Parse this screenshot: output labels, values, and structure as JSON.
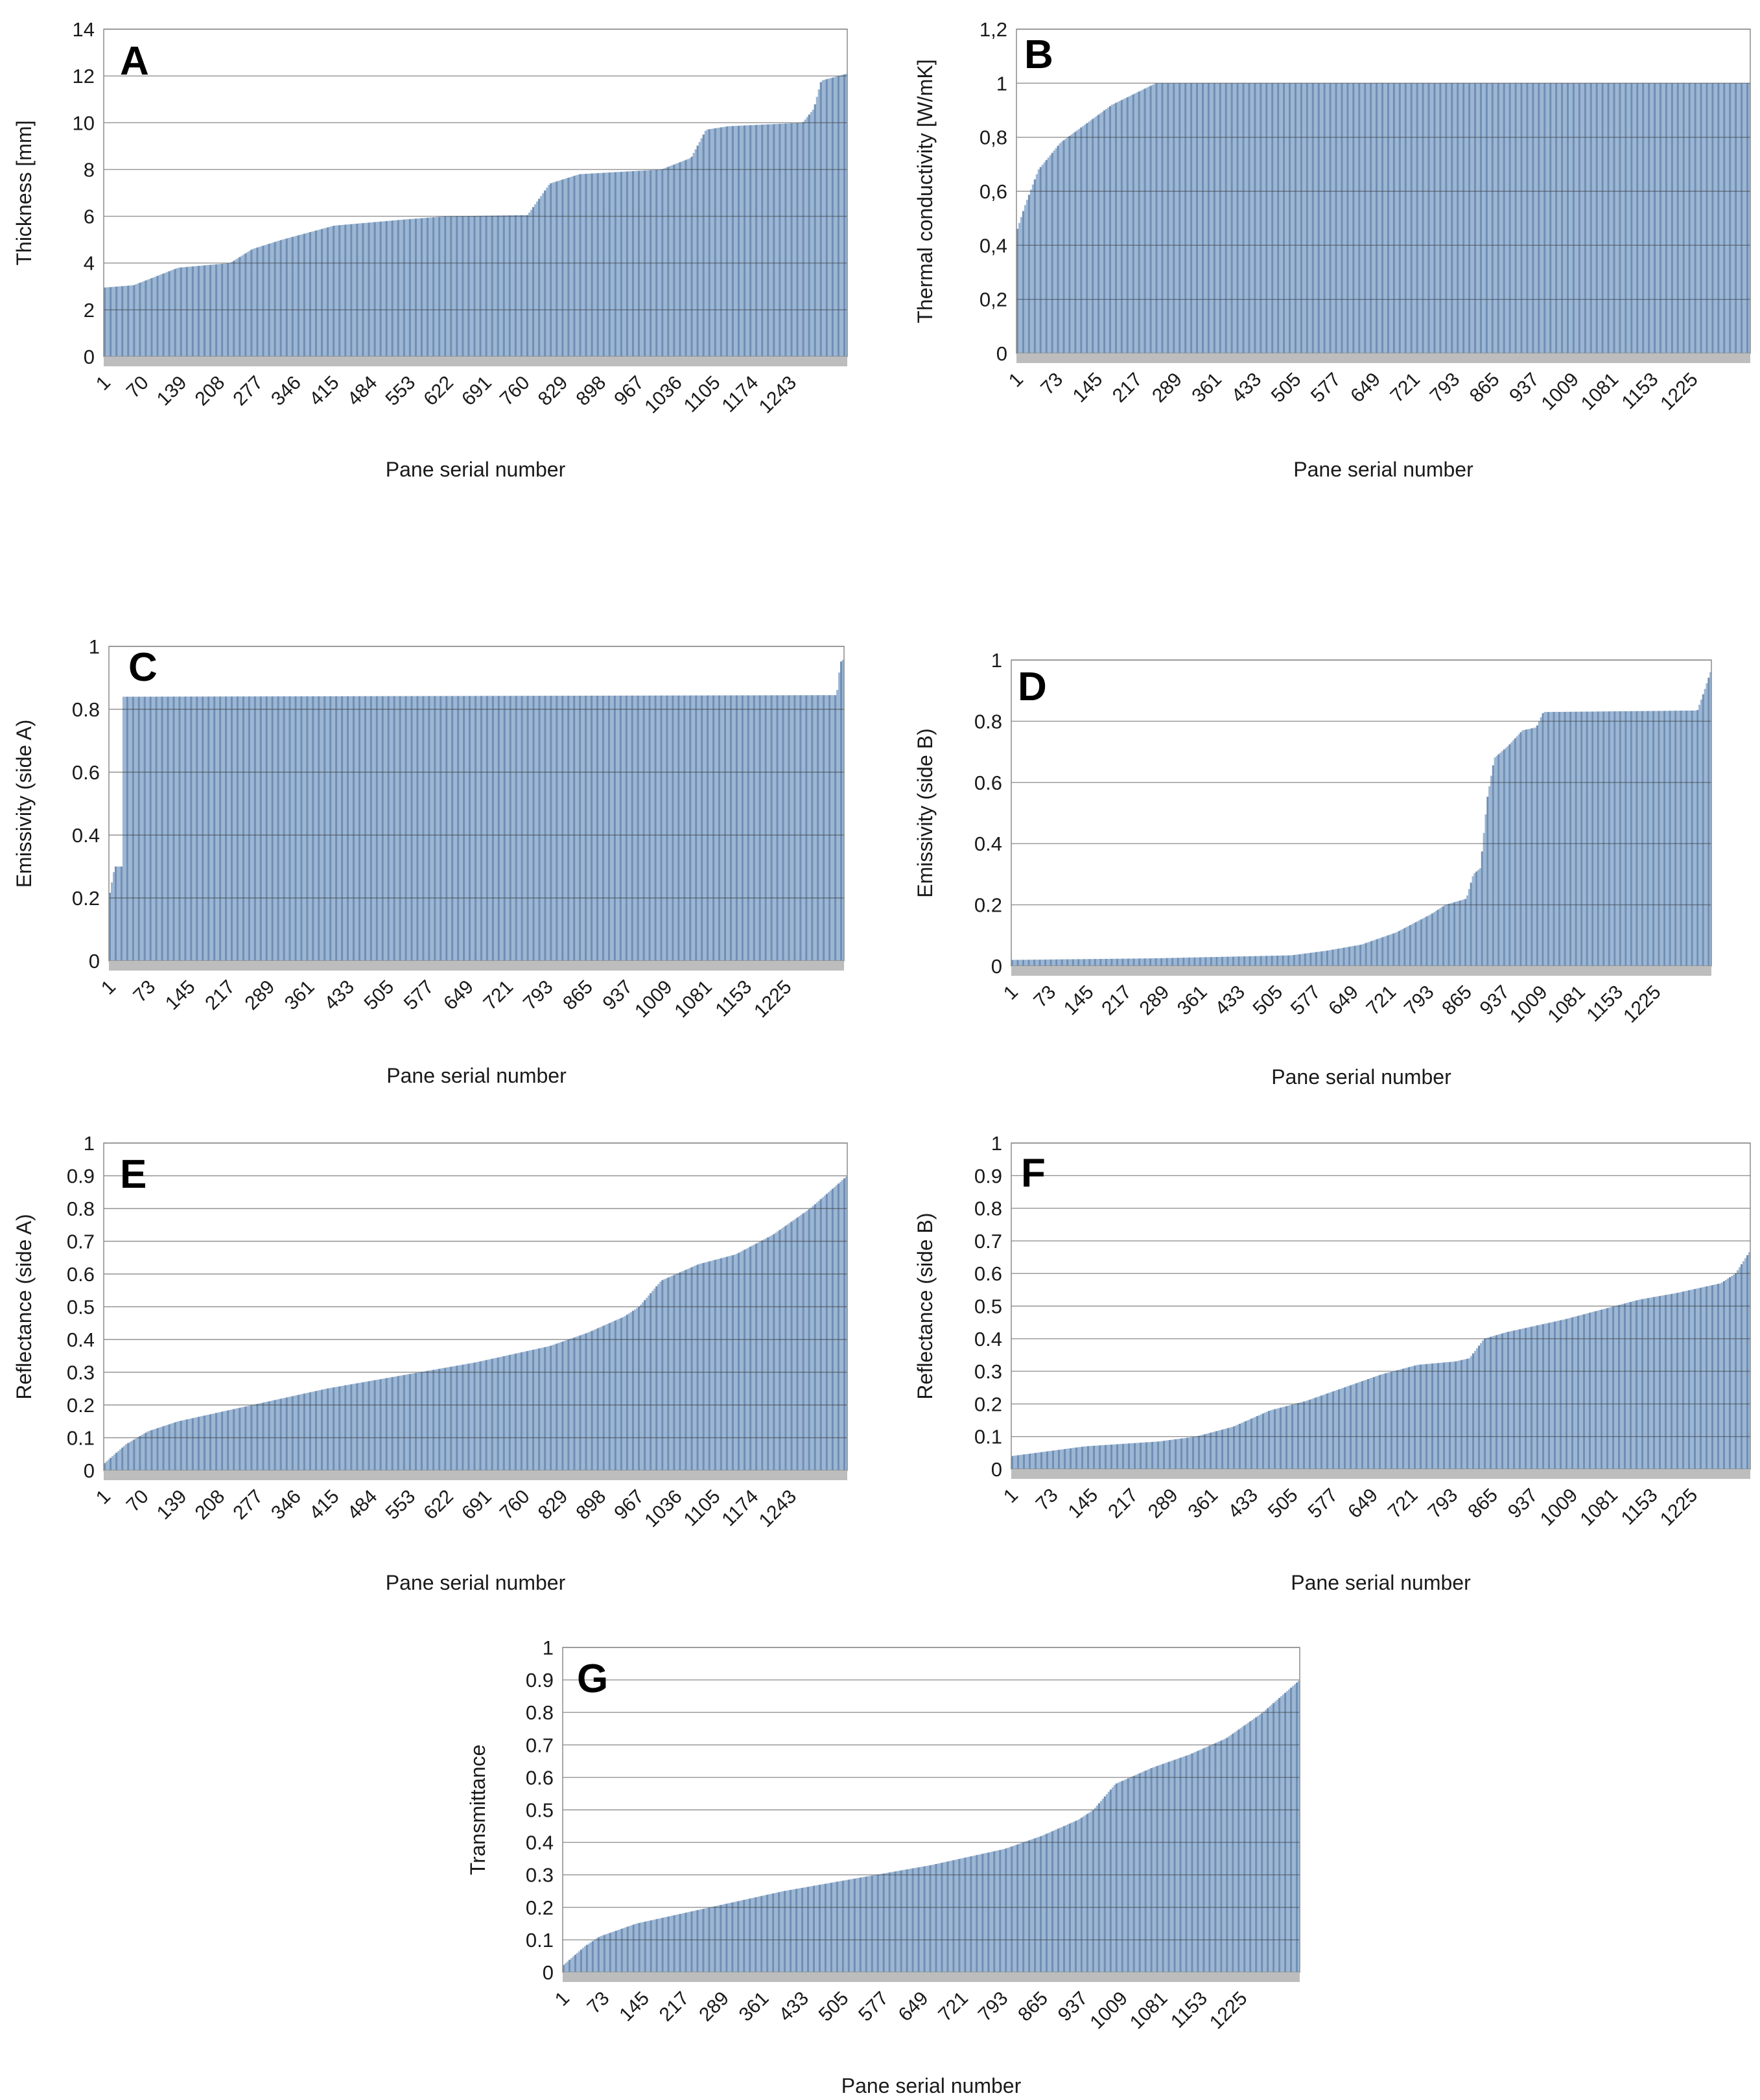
{
  "figure": {
    "bar_color": "#9cb6d3",
    "bar_edge_color": "#6f8fb5",
    "baseline_color": "#bdbdbd",
    "grid_color": "#3a3a3a"
  },
  "chart_data": [
    {
      "panel": "A",
      "type": "bar",
      "ylabel": "Thickness [mm]",
      "xlabel": "Pane serial number",
      "ylim": [
        0,
        14
      ],
      "yticks": [
        "0",
        "2",
        "4",
        "6",
        "8",
        "10",
        "12",
        "14"
      ],
      "yticks_values": [
        0,
        2,
        4,
        6,
        8,
        10,
        12,
        14
      ],
      "xticks": [
        "1",
        "70",
        "139",
        "208",
        "277",
        "346",
        "415",
        "484",
        "553",
        "622",
        "691",
        "760",
        "829",
        "898",
        "967",
        "1036",
        "1105",
        "1174",
        "1243"
      ],
      "n": 1280,
      "profile": [
        [
          0,
          2.95
        ],
        [
          0.04,
          3.05
        ],
        [
          0.06,
          3.3
        ],
        [
          0.1,
          3.8
        ],
        [
          0.17,
          4.0
        ],
        [
          0.2,
          4.6
        ],
        [
          0.24,
          5.0
        ],
        [
          0.31,
          5.6
        ],
        [
          0.4,
          5.85
        ],
        [
          0.46,
          6.0
        ],
        [
          0.57,
          6.05
        ],
        [
          0.6,
          7.4
        ],
        [
          0.64,
          7.8
        ],
        [
          0.75,
          8.0
        ],
        [
          0.79,
          8.5
        ],
        [
          0.81,
          9.7
        ],
        [
          0.84,
          9.85
        ],
        [
          0.94,
          10.0
        ],
        [
          0.955,
          10.6
        ],
        [
          0.965,
          11.8
        ],
        [
          1.0,
          12.1
        ]
      ]
    },
    {
      "panel": "B",
      "type": "bar",
      "ylabel": "Thermal conductivity  [W/mK]",
      "xlabel": "Pane serial number",
      "ylim": [
        0,
        1.2
      ],
      "yticks": [
        "0",
        "0,2",
        "0,4",
        "0,6",
        "0,8",
        "1",
        "1,2"
      ],
      "yticks_values": [
        0,
        0.2,
        0.4,
        0.6,
        0.8,
        1.0,
        1.2
      ],
      "xticks": [
        "1",
        "73",
        "145",
        "217",
        "289",
        "361",
        "433",
        "505",
        "577",
        "649",
        "721",
        "793",
        "865",
        "937",
        "1009",
        "1081",
        "1153",
        "1225"
      ],
      "n": 1280,
      "profile": [
        [
          0,
          0.45
        ],
        [
          0.012,
          0.55
        ],
        [
          0.03,
          0.68
        ],
        [
          0.06,
          0.78
        ],
        [
          0.1,
          0.86
        ],
        [
          0.13,
          0.92
        ],
        [
          0.16,
          0.96
        ],
        [
          0.19,
          1.0
        ],
        [
          1.0,
          1.0
        ]
      ]
    },
    {
      "panel": "C",
      "type": "bar",
      "ylabel": "Emissivity (side A)",
      "xlabel": "Pane serial number",
      "ylim": [
        0,
        1
      ],
      "yticks": [
        "0",
        "0.2",
        "0.4",
        "0.6",
        "0.8",
        "1"
      ],
      "yticks_values": [
        0,
        0.2,
        0.4,
        0.6,
        0.8,
        1.0
      ],
      "xticks": [
        "1",
        "73",
        "145",
        "217",
        "289",
        "361",
        "433",
        "505",
        "577",
        "649",
        "721",
        "793",
        "865",
        "937",
        "1009",
        "1081",
        "1153",
        "1225"
      ],
      "n": 1280,
      "profile": [
        [
          0,
          0.2
        ],
        [
          0.008,
          0.3
        ],
        [
          0.018,
          0.3
        ],
        [
          0.0185,
          0.84
        ],
        [
          0.99,
          0.845
        ],
        [
          0.995,
          0.95
        ],
        [
          1.0,
          0.96
        ]
      ]
    },
    {
      "panel": "D",
      "type": "bar",
      "ylabel": "Emissivity (side B)",
      "xlabel": "Pane serial number",
      "ylim": [
        0,
        1
      ],
      "yticks": [
        "0",
        "0.2",
        "0.4",
        "0.6",
        "0.8",
        "1"
      ],
      "yticks_values": [
        0,
        0.2,
        0.4,
        0.6,
        0.8,
        1.0
      ],
      "xticks": [
        "1",
        "73",
        "145",
        "217",
        "289",
        "361",
        "433",
        "505",
        "577",
        "649",
        "721",
        "793",
        "865",
        "937",
        "1009",
        "1081",
        "1153",
        "1225"
      ],
      "n": 1280,
      "profile": [
        [
          0,
          0.02
        ],
        [
          0.2,
          0.025
        ],
        [
          0.4,
          0.035
        ],
        [
          0.45,
          0.05
        ],
        [
          0.5,
          0.07
        ],
        [
          0.55,
          0.11
        ],
        [
          0.6,
          0.17
        ],
        [
          0.62,
          0.2
        ],
        [
          0.65,
          0.22
        ],
        [
          0.66,
          0.3
        ],
        [
          0.67,
          0.32
        ],
        [
          0.68,
          0.55
        ],
        [
          0.69,
          0.68
        ],
        [
          0.71,
          0.72
        ],
        [
          0.73,
          0.77
        ],
        [
          0.75,
          0.78
        ],
        [
          0.76,
          0.83
        ],
        [
          0.98,
          0.835
        ],
        [
          0.99,
          0.9
        ],
        [
          1.0,
          0.97
        ]
      ]
    },
    {
      "panel": "E",
      "type": "bar",
      "ylabel": "Reflectance (side A)",
      "xlabel": "Pane serial number",
      "ylim": [
        0,
        1
      ],
      "yticks": [
        "0",
        "0.1",
        "0.2",
        "0.3",
        "0.4",
        "0.5",
        "0.6",
        "0.7",
        "0.8",
        "0.9",
        "1"
      ],
      "yticks_values": [
        0,
        0.1,
        0.2,
        0.3,
        0.4,
        0.5,
        0.6,
        0.7,
        0.8,
        0.9,
        1.0
      ],
      "xticks": [
        "1",
        "70",
        "139",
        "208",
        "277",
        "346",
        "415",
        "484",
        "553",
        "622",
        "691",
        "760",
        "829",
        "898",
        "967",
        "1036",
        "1105",
        "1174",
        "1243"
      ],
      "n": 1280,
      "profile": [
        [
          0,
          0.02
        ],
        [
          0.03,
          0.08
        ],
        [
          0.06,
          0.12
        ],
        [
          0.1,
          0.15
        ],
        [
          0.2,
          0.2
        ],
        [
          0.3,
          0.25
        ],
        [
          0.4,
          0.29
        ],
        [
          0.5,
          0.33
        ],
        [
          0.6,
          0.38
        ],
        [
          0.65,
          0.42
        ],
        [
          0.7,
          0.47
        ],
        [
          0.72,
          0.5
        ],
        [
          0.75,
          0.58
        ],
        [
          0.8,
          0.63
        ],
        [
          0.85,
          0.66
        ],
        [
          0.9,
          0.72
        ],
        [
          0.95,
          0.8
        ],
        [
          1.0,
          0.9
        ]
      ]
    },
    {
      "panel": "F",
      "type": "bar",
      "ylabel": "Reflectance (side B)",
      "xlabel": "Pane serial number",
      "ylim": [
        0,
        1
      ],
      "yticks": [
        "0",
        "0.1",
        "0.2",
        "0.3",
        "0.4",
        "0.5",
        "0.6",
        "0.7",
        "0.8",
        "0.9",
        "1"
      ],
      "yticks_values": [
        0,
        0.1,
        0.2,
        0.3,
        0.4,
        0.5,
        0.6,
        0.7,
        0.8,
        0.9,
        1.0
      ],
      "xticks": [
        "1",
        "73",
        "145",
        "217",
        "289",
        "361",
        "433",
        "505",
        "577",
        "649",
        "721",
        "793",
        "865",
        "937",
        "1009",
        "1081",
        "1153",
        "1225"
      ],
      "n": 1280,
      "profile": [
        [
          0,
          0.04
        ],
        [
          0.1,
          0.07
        ],
        [
          0.2,
          0.085
        ],
        [
          0.25,
          0.1
        ],
        [
          0.3,
          0.13
        ],
        [
          0.35,
          0.18
        ],
        [
          0.4,
          0.21
        ],
        [
          0.45,
          0.25
        ],
        [
          0.5,
          0.29
        ],
        [
          0.55,
          0.32
        ],
        [
          0.6,
          0.33
        ],
        [
          0.62,
          0.34
        ],
        [
          0.64,
          0.4
        ],
        [
          0.67,
          0.42
        ],
        [
          0.75,
          0.46
        ],
        [
          0.8,
          0.49
        ],
        [
          0.85,
          0.52
        ],
        [
          0.9,
          0.54
        ],
        [
          0.96,
          0.57
        ],
        [
          0.98,
          0.6
        ],
        [
          1.0,
          0.67
        ]
      ]
    },
    {
      "panel": "G",
      "type": "bar",
      "ylabel": "Transmittance",
      "xlabel": "Pane serial number",
      "ylim": [
        0,
        1
      ],
      "yticks": [
        "0",
        "0.1",
        "0.2",
        "0.3",
        "0.4",
        "0.5",
        "0.6",
        "0.7",
        "0.8",
        "0.9",
        "1"
      ],
      "yticks_values": [
        0,
        0.1,
        0.2,
        0.3,
        0.4,
        0.5,
        0.6,
        0.7,
        0.8,
        0.9,
        1.0
      ],
      "xticks": [
        "1",
        "73",
        "145",
        "217",
        "289",
        "361",
        "433",
        "505",
        "577",
        "649",
        "721",
        "793",
        "865",
        "937",
        "1009",
        "1081",
        "1153",
        "1225"
      ],
      "n": 1280,
      "profile": [
        [
          0,
          0.02
        ],
        [
          0.03,
          0.08
        ],
        [
          0.05,
          0.11
        ],
        [
          0.1,
          0.15
        ],
        [
          0.2,
          0.2
        ],
        [
          0.3,
          0.25
        ],
        [
          0.4,
          0.29
        ],
        [
          0.5,
          0.33
        ],
        [
          0.6,
          0.38
        ],
        [
          0.65,
          0.42
        ],
        [
          0.7,
          0.47
        ],
        [
          0.72,
          0.5
        ],
        [
          0.75,
          0.58
        ],
        [
          0.8,
          0.63
        ],
        [
          0.85,
          0.67
        ],
        [
          0.9,
          0.72
        ],
        [
          0.95,
          0.8
        ],
        [
          1.0,
          0.9
        ]
      ]
    }
  ]
}
